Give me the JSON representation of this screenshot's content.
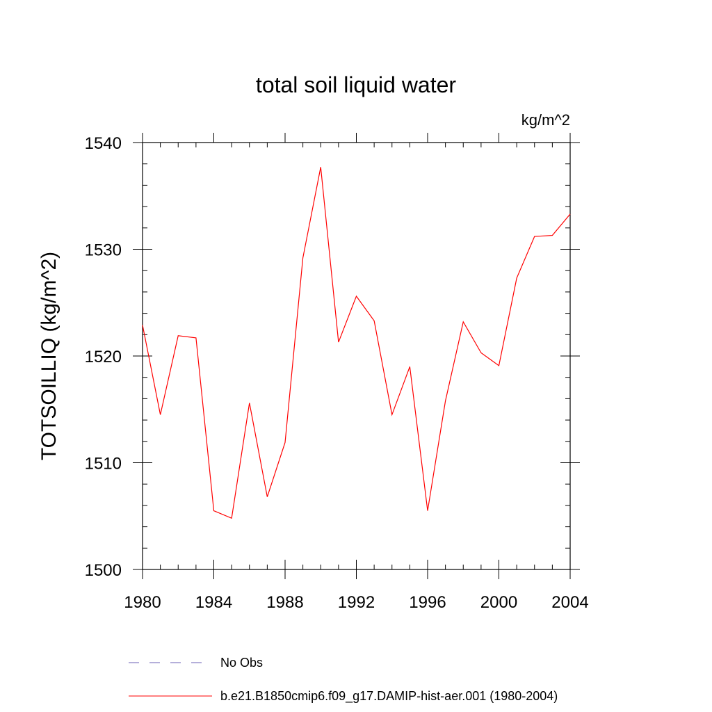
{
  "chart_data": {
    "type": "line",
    "title": "total soil liquid water",
    "units": "kg/m^2",
    "ylabel": "TOTSOILLIQ  (kg/m^2)",
    "xlabel": "",
    "xlim": [
      1980,
      2004
    ],
    "ylim": [
      1500,
      1540
    ],
    "x_ticks": [
      1980,
      1984,
      1988,
      1992,
      1996,
      2000,
      2004
    ],
    "y_ticks": [
      1500,
      1510,
      1520,
      1530,
      1540
    ],
    "x_minor_step": 1,
    "y_minor_step": 2,
    "grid": false,
    "series": [
      {
        "name": "b.e21.B1850cmip6.f09_g17.DAMIP-hist-aer.001 (1980-2004)",
        "color": "#ff0000",
        "dash": "solid",
        "x": [
          1980,
          1981,
          1982,
          1983,
          1984,
          1985,
          1986,
          1987,
          1988,
          1989,
          1990,
          1991,
          1992,
          1993,
          1994,
          1995,
          1996,
          1997,
          1998,
          1999,
          2000,
          2001,
          2002,
          2003,
          2004
        ],
        "values": [
          1522.9,
          1514.5,
          1521.9,
          1521.7,
          1505.5,
          1504.8,
          1515.6,
          1506.8,
          1511.9,
          1529.2,
          1537.7,
          1521.3,
          1525.6,
          1523.3,
          1514.5,
          1519.0,
          1505.5,
          1515.8,
          1523.2,
          1520.3,
          1519.1,
          1527.3,
          1531.2,
          1531.3,
          1533.3
        ]
      }
    ],
    "legend": {
      "placement": "bottom",
      "entries": [
        {
          "label": "No Obs",
          "color": "#6b5fb5",
          "dash": "dashed"
        },
        {
          "label": "b.e21.B1850cmip6.f09_g17.DAMIP-hist-aer.001 (1980-2004)",
          "color": "#ff0000",
          "dash": "solid"
        }
      ]
    }
  }
}
